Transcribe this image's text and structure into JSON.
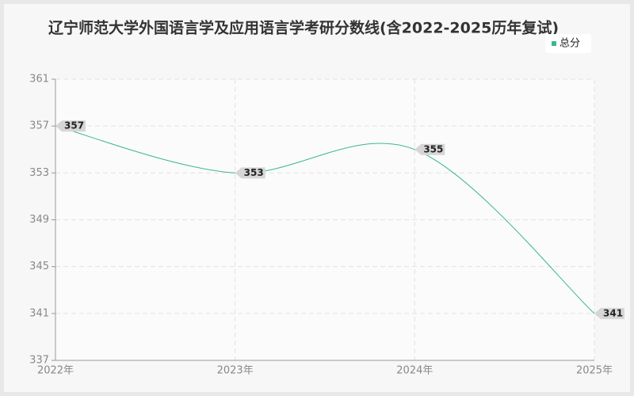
{
  "chart_data": {
    "type": "line",
    "title": "辽宁师范大学外国语言学及应用语言学考研分数线(含2022-2025历年复试)",
    "categories": [
      "2022年",
      "2023年",
      "2024年",
      "2025年"
    ],
    "series": [
      {
        "name": "总分",
        "color": "#3cb88a",
        "values": [
          357,
          353,
          355,
          341
        ]
      }
    ],
    "ylim": [
      337,
      361
    ],
    "yticks": [
      337,
      341,
      345,
      349,
      353,
      357,
      361
    ],
    "grid": true,
    "legend": "top-right",
    "smooth": true
  }
}
